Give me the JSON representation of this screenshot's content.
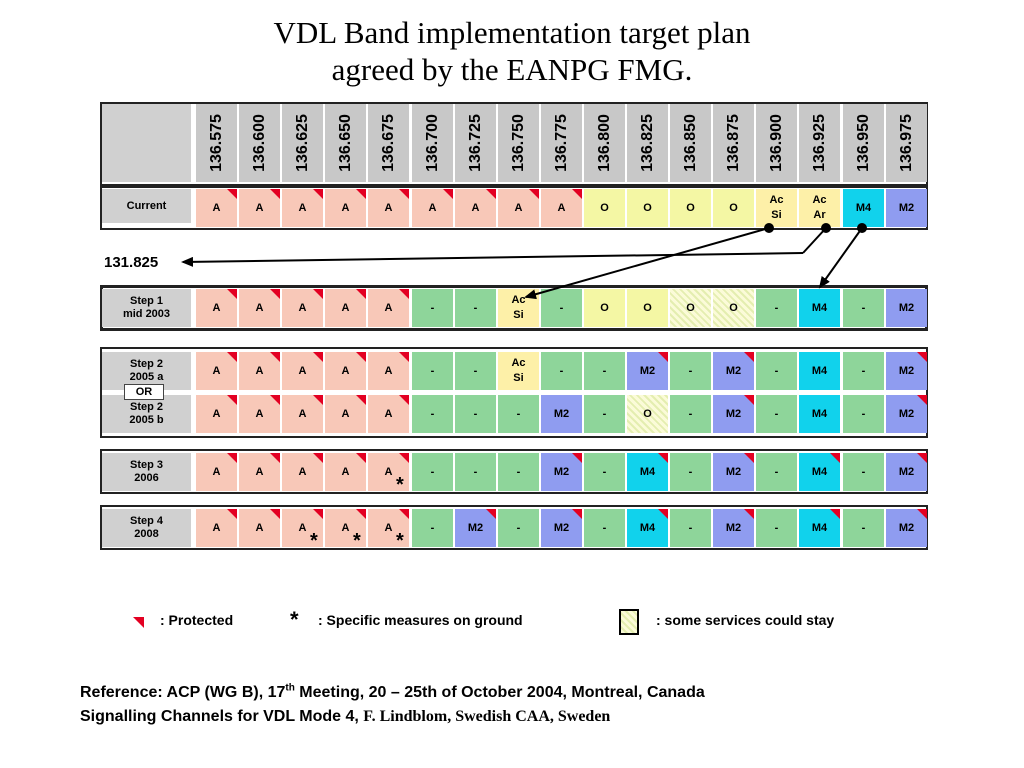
{
  "title": {
    "line1": "VDL Band implementation target plan",
    "line2": "agreed by the EANPG FMG."
  },
  "frequencies": [
    "136.575",
    "136.600",
    "136.625",
    "136.650",
    "136.675",
    "136.700",
    "136.725",
    "136.750",
    "136.775",
    "136.800",
    "136.825",
    "136.850",
    "136.875",
    "136.900",
    "136.925",
    "136.950",
    "136.975"
  ],
  "rows": [
    {
      "label": "Current",
      "cells": [
        {
          "t": "A",
          "k": "A",
          "flag": true
        },
        {
          "t": "A",
          "k": "A",
          "flag": true
        },
        {
          "t": "A",
          "k": "A",
          "flag": true
        },
        {
          "t": "A",
          "k": "A",
          "flag": true
        },
        {
          "t": "A",
          "k": "A",
          "flag": true
        },
        {
          "t": "A",
          "k": "A",
          "flag": true
        },
        {
          "t": "A",
          "k": "A",
          "flag": true
        },
        {
          "t": "A",
          "k": "A",
          "flag": true
        },
        {
          "t": "A",
          "k": "A",
          "flag": true
        },
        {
          "t": "O",
          "k": "O"
        },
        {
          "t": "O",
          "k": "O"
        },
        {
          "t": "O",
          "k": "O"
        },
        {
          "t": "O",
          "k": "O"
        },
        {
          "t": "Ac\nSi",
          "k": "Ac"
        },
        {
          "t": "Ac\nAr",
          "k": "Ac"
        },
        {
          "t": "M4",
          "k": "M4"
        },
        {
          "t": "M2",
          "k": "M2"
        }
      ]
    },
    {
      "label": "Step 1\nmid 2003",
      "cells": [
        {
          "t": "A",
          "k": "A",
          "flag": true
        },
        {
          "t": "A",
          "k": "A",
          "flag": true
        },
        {
          "t": "A",
          "k": "A",
          "flag": true
        },
        {
          "t": "A",
          "k": "A",
          "flag": true
        },
        {
          "t": "A",
          "k": "A",
          "flag": true
        },
        {
          "t": "-",
          "k": "D"
        },
        {
          "t": "-",
          "k": "D"
        },
        {
          "t": "Ac\nSi",
          "k": "Ac"
        },
        {
          "t": "-",
          "k": "D"
        },
        {
          "t": "O",
          "k": "O"
        },
        {
          "t": "O",
          "k": "O"
        },
        {
          "t": "O",
          "k": "H"
        },
        {
          "t": "O",
          "k": "H"
        },
        {
          "t": "-",
          "k": "D"
        },
        {
          "t": "M4",
          "k": "M4"
        },
        {
          "t": "-",
          "k": "D"
        },
        {
          "t": "M2",
          "k": "M2"
        }
      ]
    },
    {
      "label": "Step 2\n2005 a",
      "cells": [
        {
          "t": "A",
          "k": "A",
          "flag": true
        },
        {
          "t": "A",
          "k": "A",
          "flag": true
        },
        {
          "t": "A",
          "k": "A",
          "flag": true
        },
        {
          "t": "A",
          "k": "A",
          "flag": true
        },
        {
          "t": "A",
          "k": "A",
          "flag": true
        },
        {
          "t": "-",
          "k": "D"
        },
        {
          "t": "-",
          "k": "D"
        },
        {
          "t": "Ac\nSi",
          "k": "Ac"
        },
        {
          "t": "-",
          "k": "D"
        },
        {
          "t": "-",
          "k": "D"
        },
        {
          "t": "M2",
          "k": "M2",
          "flag": true
        },
        {
          "t": "-",
          "k": "D"
        },
        {
          "t": "M2",
          "k": "M2",
          "flag": true
        },
        {
          "t": "-",
          "k": "D"
        },
        {
          "t": "M4",
          "k": "M4"
        },
        {
          "t": "-",
          "k": "D"
        },
        {
          "t": "M2",
          "k": "M2",
          "flag": true
        }
      ]
    },
    {
      "label": "Step 2\n2005 b",
      "cells": [
        {
          "t": "A",
          "k": "A",
          "flag": true
        },
        {
          "t": "A",
          "k": "A",
          "flag": true
        },
        {
          "t": "A",
          "k": "A",
          "flag": true
        },
        {
          "t": "A",
          "k": "A",
          "flag": true
        },
        {
          "t": "A",
          "k": "A",
          "flag": true
        },
        {
          "t": "-",
          "k": "D"
        },
        {
          "t": "-",
          "k": "D"
        },
        {
          "t": "-",
          "k": "D"
        },
        {
          "t": "M2",
          "k": "M2"
        },
        {
          "t": "-",
          "k": "D"
        },
        {
          "t": "O",
          "k": "H"
        },
        {
          "t": "-",
          "k": "D"
        },
        {
          "t": "M2",
          "k": "M2",
          "flag": true
        },
        {
          "t": "-",
          "k": "D"
        },
        {
          "t": "M4",
          "k": "M4"
        },
        {
          "t": "-",
          "k": "D"
        },
        {
          "t": "M2",
          "k": "M2",
          "flag": true
        }
      ]
    },
    {
      "label": "Step 3\n2006",
      "cells": [
        {
          "t": "A",
          "k": "A",
          "flag": true
        },
        {
          "t": "A",
          "k": "A",
          "flag": true
        },
        {
          "t": "A",
          "k": "A",
          "flag": true
        },
        {
          "t": "A",
          "k": "A",
          "flag": true
        },
        {
          "t": "A",
          "k": "A",
          "flag": true
        },
        {
          "t": "-",
          "k": "D"
        },
        {
          "t": "-",
          "k": "D"
        },
        {
          "t": "-",
          "k": "D"
        },
        {
          "t": "M2",
          "k": "M2",
          "flag": true
        },
        {
          "t": "-",
          "k": "D"
        },
        {
          "t": "M4",
          "k": "M4",
          "flag": true
        },
        {
          "t": "-",
          "k": "D"
        },
        {
          "t": "M2",
          "k": "M2",
          "flag": true
        },
        {
          "t": "-",
          "k": "D"
        },
        {
          "t": "M4",
          "k": "M4",
          "flag": true
        },
        {
          "t": "-",
          "k": "D"
        },
        {
          "t": "M2",
          "k": "M2",
          "flag": true
        }
      ]
    },
    {
      "label": "Step 4\n2008",
      "cells": [
        {
          "t": "A",
          "k": "A",
          "flag": true
        },
        {
          "t": "A",
          "k": "A",
          "flag": true
        },
        {
          "t": "A",
          "k": "A",
          "flag": true
        },
        {
          "t": "A",
          "k": "A",
          "flag": true
        },
        {
          "t": "A",
          "k": "A",
          "flag": true
        },
        {
          "t": "-",
          "k": "D"
        },
        {
          "t": "M2",
          "k": "M2",
          "flag": true
        },
        {
          "t": "-",
          "k": "D"
        },
        {
          "t": "M2",
          "k": "M2",
          "flag": true
        },
        {
          "t": "-",
          "k": "D"
        },
        {
          "t": "M4",
          "k": "M4",
          "flag": true
        },
        {
          "t": "-",
          "k": "D"
        },
        {
          "t": "M2",
          "k": "M2",
          "flag": true
        },
        {
          "t": "-",
          "k": "D"
        },
        {
          "t": "M4",
          "k": "M4",
          "flag": true
        },
        {
          "t": "-",
          "k": "D"
        },
        {
          "t": "M2",
          "k": "M2",
          "flag": true
        }
      ]
    }
  ],
  "or_badge": "OR",
  "asterisk": "*",
  "freq_131": "131.825",
  "legend": {
    "protected": ": Protected",
    "star": "*",
    "specific": ": Specific measures on ground",
    "some_services": ": some services could stay"
  },
  "reference": {
    "line1_pre": "Reference: ACP (WG B), 17",
    "line1_sup": "th",
    "line1_post": " Meeting, 20 – 25th of October 2004, Montreal, Canada",
    "line2_main": "Signalling Channels for VDL Mode 4, ",
    "line2_author": "F. Lindblom, Swedish CAA, Sweden"
  },
  "colors": {
    "A": "#f8c8b8",
    "O": "#f4f7a4",
    "Ac": "#fdf0a8",
    "M4": "#11d2ec",
    "M2": "#8f9cf0",
    "D": "#8ed59a",
    "protected_flag": "#e30022"
  }
}
